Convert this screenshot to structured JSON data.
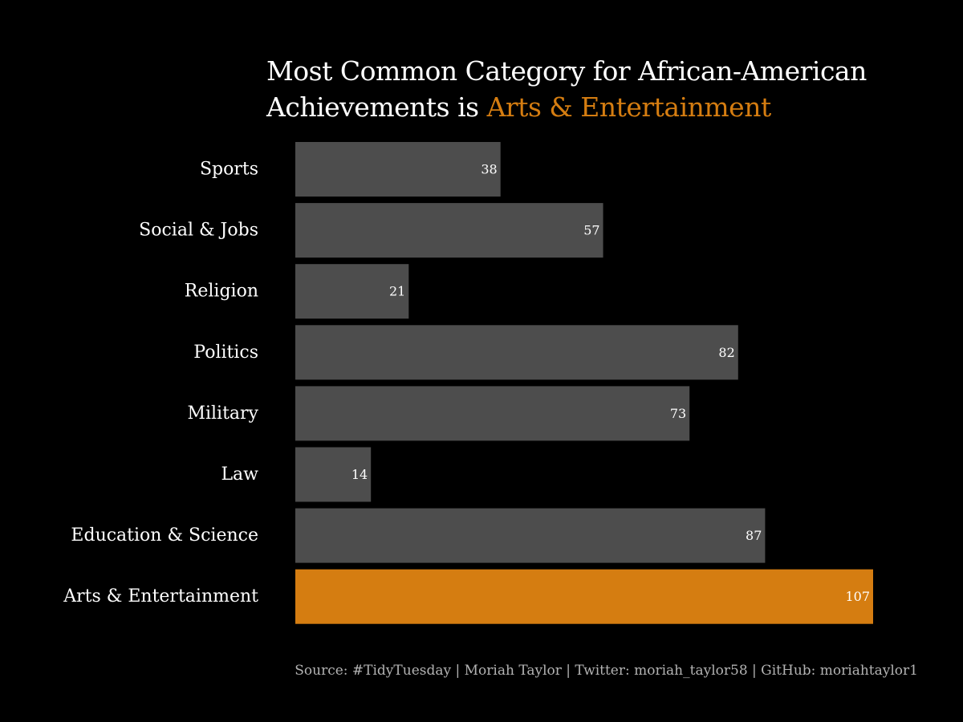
{
  "title": {
    "line1": "Most Common Category for African-American",
    "line2_prefix": "Achievements is",
    "line2_highlight": "Arts & Entertainment"
  },
  "caption": "Source: #TidyTuesday | Moriah Taylor | Twitter: moriah_taylor58 | GitHub: moriahtaylor1",
  "colors": {
    "background": "#000000",
    "bar_default": "#4d4d4d",
    "bar_highlight": "#d57d11",
    "text": "#ffffff",
    "caption": "#b3b3b3"
  },
  "chart_data": {
    "type": "bar",
    "orientation": "horizontal",
    "categories": [
      "Sports",
      "Social & Jobs",
      "Religion",
      "Politics",
      "Military",
      "Law",
      "Education & Science",
      "Arts & Entertainment"
    ],
    "values": [
      38,
      57,
      21,
      82,
      73,
      14,
      87,
      107
    ],
    "highlight": "Arts & Entertainment",
    "xlim": [
      0,
      107
    ],
    "grid": false,
    "data_labels": true
  }
}
